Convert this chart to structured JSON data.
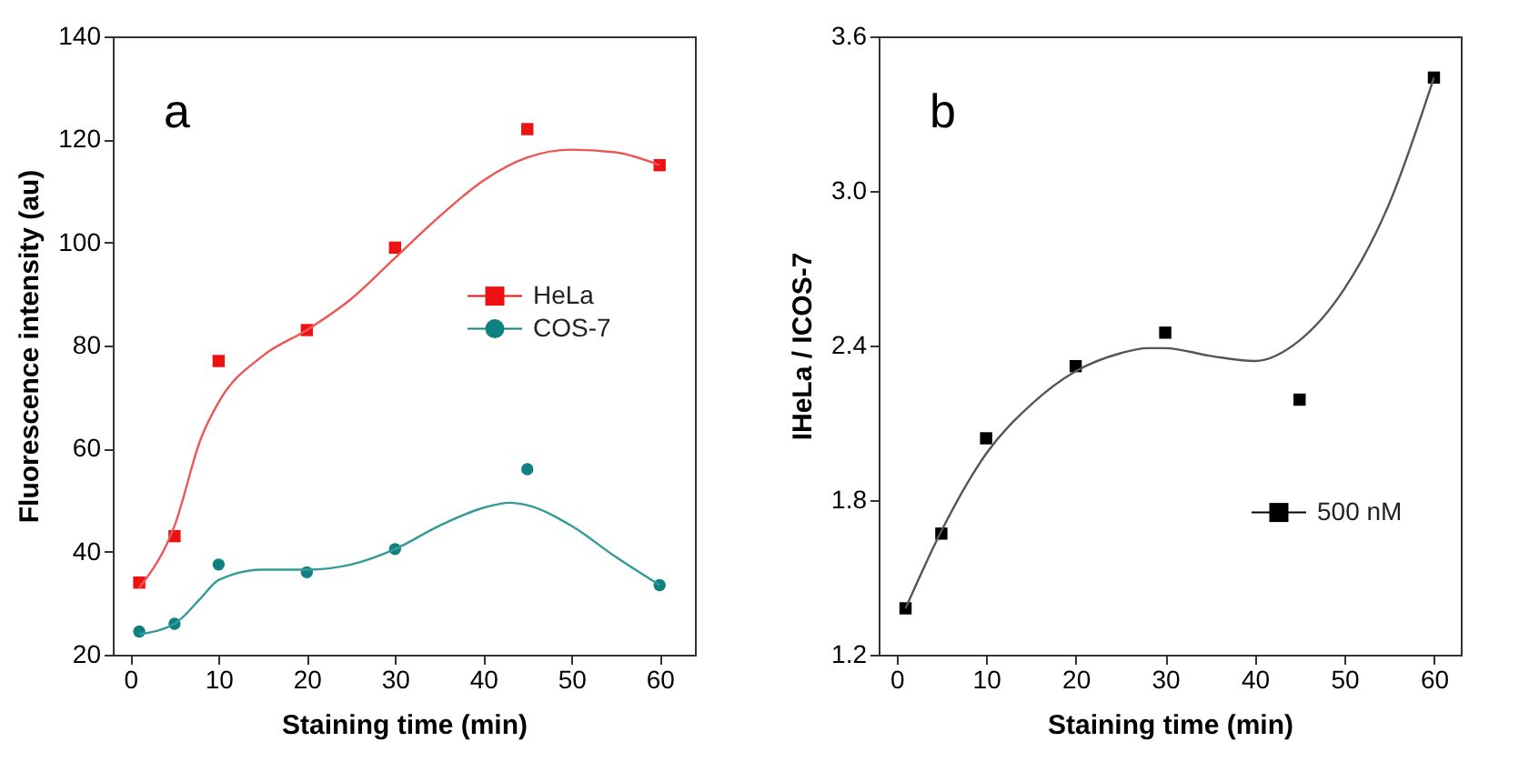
{
  "chart_data": [
    {
      "type": "scatter",
      "xlabel": "Staining time (min)",
      "ylabel": "Fluorescence intensity (au)",
      "annotations": [
        "a"
      ],
      "xlim": [
        -2,
        64
      ],
      "ylim": [
        20,
        140
      ],
      "xticks": [
        0,
        10,
        20,
        30,
        40,
        50,
        60
      ],
      "yticks": [
        20,
        40,
        60,
        80,
        100,
        120,
        140
      ],
      "grid": false,
      "legend": "right",
      "series": [
        {
          "name": "HeLa",
          "type": "scatter",
          "marker": "square",
          "color": "#ee1111",
          "x": [
            1,
            5,
            10,
            20,
            30,
            45,
            60
          ],
          "values": [
            34,
            43,
            77,
            83,
            99,
            122,
            115
          ]
        },
        {
          "name": "COS-7",
          "type": "scatter",
          "marker": "circle",
          "color": "#118080",
          "x": [
            1,
            5,
            10,
            20,
            30,
            45,
            60
          ],
          "values": [
            24.5,
            26,
            37.5,
            36,
            40.5,
            56,
            33.5
          ]
        },
        {
          "type": "line",
          "color": "#ee5555",
          "x": [
            1,
            5,
            8,
            10,
            15,
            20,
            25,
            30,
            35,
            40,
            45,
            50,
            55,
            60
          ],
          "values": [
            33,
            45,
            62,
            69,
            78,
            83,
            89,
            97,
            105,
            112,
            116.5,
            118,
            117.5,
            115
          ]
        },
        {
          "type": "line",
          "color": "#339999",
          "x": [
            1,
            5,
            8,
            10,
            15,
            20,
            25,
            30,
            35,
            40,
            43,
            45,
            50,
            55,
            60
          ],
          "values": [
            24,
            26,
            31,
            34.5,
            36.5,
            36.5,
            37.5,
            40.5,
            45,
            48.5,
            49.5,
            49,
            45,
            39,
            33.5
          ]
        }
      ]
    },
    {
      "type": "scatter",
      "xlabel": "Staining time (min)",
      "ylabel": "IHeLa / ICOS-7",
      "annotations": [
        "b"
      ],
      "xlim": [
        -2,
        63
      ],
      "ylim": [
        1.2,
        3.6
      ],
      "xticks": [
        0,
        10,
        20,
        30,
        40,
        50,
        60
      ],
      "yticks": [
        {
          "value": 1.2,
          "label": "1.2"
        },
        1.8,
        2.4,
        {
          "value": 3.0,
          "label": "3.0"
        },
        3.6
      ],
      "grid": false,
      "legend": "bottom right",
      "series": [
        {
          "name": "500 nM",
          "type": "scatter",
          "marker": "square",
          "color": "#000000",
          "x": [
            1,
            5,
            10,
            20,
            30,
            45,
            60
          ],
          "values": [
            1.38,
            1.67,
            2.04,
            2.32,
            2.45,
            2.19,
            3.44
          ]
        },
        {
          "type": "line",
          "color": "#555555",
          "x": [
            1,
            5,
            10,
            15,
            20,
            25,
            28,
            30,
            35,
            40,
            45,
            50,
            55,
            60
          ],
          "values": [
            1.38,
            1.68,
            1.98,
            2.17,
            2.3,
            2.37,
            2.39,
            2.39,
            2.36,
            2.34,
            2.42,
            2.62,
            2.95,
            3.44
          ]
        }
      ]
    }
  ]
}
